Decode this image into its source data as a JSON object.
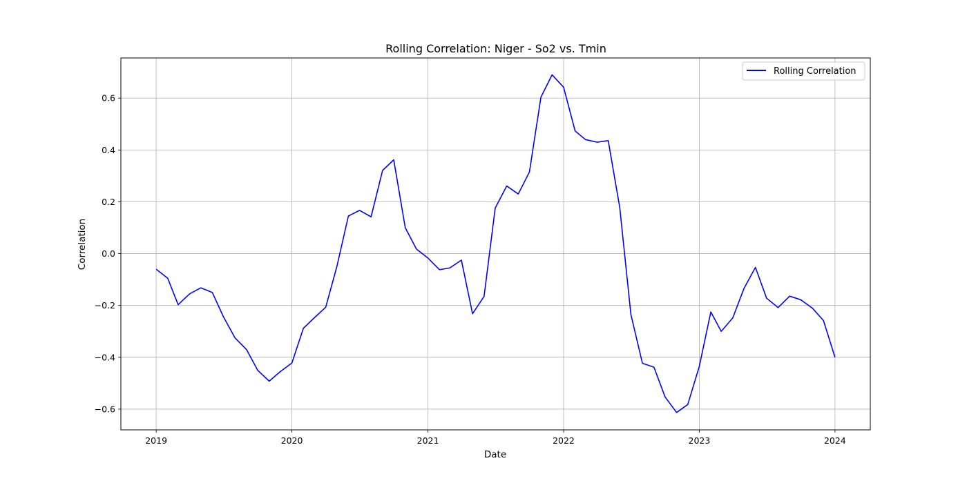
{
  "chart_data": {
    "type": "line",
    "title": "Rolling Correlation: Niger - So2 vs. Tmin",
    "xlabel": "Date",
    "ylabel": "Correlation",
    "x_ticks": [
      "2019",
      "2020",
      "2021",
      "2022",
      "2023",
      "2024"
    ],
    "y_ticks": [
      "0.6",
      "0.4",
      "0.2",
      "0.0",
      "−0.2",
      "−0.4",
      "−0.6"
    ],
    "xlim": [
      "2018-09-28",
      "2024-04-05"
    ],
    "ylim": [
      -0.68,
      0.755
    ],
    "grid": true,
    "legend_position": "top-right",
    "colors": {
      "line": "#0000ff",
      "grid": "#b0b0b0"
    },
    "series": [
      {
        "name": "Rolling Correlation",
        "x": [
          "2019-01",
          "2019-02",
          "2019-03",
          "2019-04",
          "2019-05",
          "2019-06",
          "2019-07",
          "2019-08",
          "2019-09",
          "2019-10",
          "2019-11",
          "2019-12",
          "2020-01",
          "2020-02",
          "2020-03",
          "2020-04",
          "2020-05",
          "2020-06",
          "2020-07",
          "2020-08",
          "2020-09",
          "2020-10",
          "2020-11",
          "2020-12",
          "2021-01",
          "2021-02",
          "2021-03",
          "2021-04",
          "2021-05",
          "2021-06",
          "2021-07",
          "2021-08",
          "2021-09",
          "2021-10",
          "2021-11",
          "2021-12",
          "2022-01",
          "2022-02",
          "2022-03",
          "2022-04",
          "2022-05",
          "2022-06",
          "2022-07",
          "2022-08",
          "2022-09",
          "2022-10",
          "2022-11",
          "2022-12",
          "2023-01",
          "2023-02",
          "2023-03",
          "2023-04",
          "2023-05",
          "2023-06",
          "2023-07",
          "2023-08",
          "2023-09",
          "2023-10",
          "2023-11",
          "2023-12",
          "2024-01"
        ],
        "values": [
          -0.06,
          -0.095,
          -0.197,
          -0.155,
          -0.132,
          -0.15,
          -0.244,
          -0.325,
          -0.37,
          -0.45,
          -0.492,
          -0.455,
          -0.422,
          -0.288,
          -0.248,
          -0.207,
          -0.05,
          0.145,
          0.167,
          0.142,
          0.321,
          0.362,
          0.1,
          0.018,
          -0.017,
          -0.062,
          -0.055,
          -0.025,
          -0.232,
          -0.165,
          0.176,
          0.261,
          0.23,
          0.315,
          0.604,
          0.69,
          0.642,
          0.473,
          0.44,
          0.43,
          0.436,
          0.178,
          -0.235,
          -0.423,
          -0.438,
          -0.553,
          -0.613,
          -0.582,
          -0.435,
          -0.225,
          -0.3,
          -0.248,
          -0.135,
          -0.053,
          -0.172,
          -0.208,
          -0.164,
          -0.178,
          -0.21,
          -0.258,
          -0.4
        ]
      }
    ]
  }
}
